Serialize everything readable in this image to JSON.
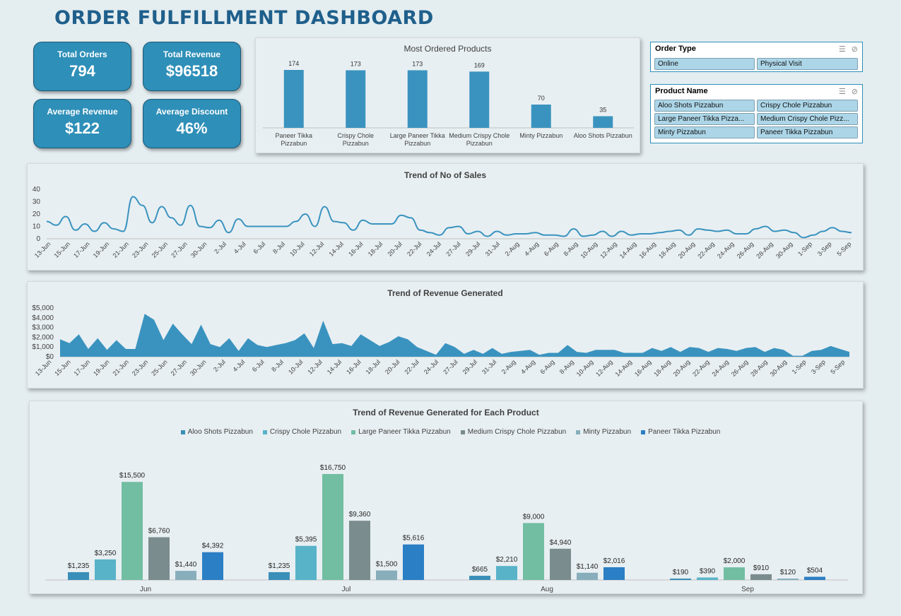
{
  "title": "ORDER FULFILLMENT DASHBOARD",
  "kpis": [
    {
      "label": "Total Orders",
      "value": "794"
    },
    {
      "label": "Total Revenue",
      "value": "$96518"
    },
    {
      "label": "Average Revenue",
      "value": "$122"
    },
    {
      "label": "Average Discount",
      "value": "46%"
    }
  ],
  "slicers": {
    "order_type": {
      "title": "Order Type",
      "items": [
        "Online",
        "Physical Visit"
      ]
    },
    "product_name": {
      "title": "Product Name",
      "items": [
        "Aloo Shots Pizzabun",
        "Crispy Chole Pizzabun",
        "Large Paneer Tikka Pizza...",
        "Medium Crispy Chole Pizz...",
        "Minty Pizzabun",
        "Paneer Tikka Pizzabun"
      ]
    }
  },
  "colors": {
    "accent": "#3a93bf",
    "kpi": "#2e8fb8",
    "title": "#1f5f8b"
  },
  "chart_data": [
    {
      "type": "bar",
      "title": "Most Ordered Products",
      "categories": [
        "Paneer Tikka Pizzabun",
        "Crispy Chole Pizzabun",
        "Large Paneer Tikka Pizzabun",
        "Medium Crispy Chole Pizzabun",
        "Minty Pizzabun",
        "Aloo Shots Pizzabun"
      ],
      "values": [
        174,
        173,
        173,
        169,
        70,
        35
      ],
      "ylim": [
        0,
        174
      ]
    },
    {
      "type": "line",
      "title": "Trend of No of Sales",
      "x_labels": [
        "13-Jun",
        "15-Jun",
        "17-Jun",
        "19-Jun",
        "21-Jun",
        "23-Jun",
        "25-Jun",
        "27-Jun",
        "30-Jun",
        "2-Jul",
        "4-Jul",
        "6-Jul",
        "8-Jul",
        "10-Jul",
        "12-Jul",
        "14-Jul",
        "16-Jul",
        "18-Jul",
        "20-Jul",
        "22-Jul",
        "24-Jul",
        "27-Jul",
        "29-Jul",
        "31-Jul",
        "2-Aug",
        "4-Aug",
        "6-Aug",
        "8-Aug",
        "10-Aug",
        "12-Aug",
        "14-Aug",
        "16-Aug",
        "18-Aug",
        "20-Aug",
        "22-Aug",
        "24-Aug",
        "26-Aug",
        "28-Aug",
        "30-Aug",
        "1-Sep",
        "3-Sep",
        "5-Sep"
      ],
      "y_ticks": [
        "0",
        "10",
        "20",
        "30",
        "40"
      ],
      "ylim": [
        0,
        40
      ],
      "values": [
        14,
        11,
        18,
        7,
        12,
        6,
        13,
        8,
        6,
        34,
        27,
        13,
        26,
        17,
        11,
        27,
        10,
        9,
        15,
        5,
        16,
        10,
        10,
        10,
        10,
        10,
        14,
        20,
        10,
        26,
        14,
        13,
        7,
        15,
        12,
        12,
        12,
        19,
        17,
        7,
        5,
        3,
        9,
        10,
        4,
        6,
        2,
        6,
        3,
        4,
        4,
        5,
        3,
        3,
        2,
        8,
        2,
        3,
        6,
        2,
        6,
        3,
        4,
        4,
        5,
        6,
        7,
        3,
        8,
        7,
        6,
        7,
        4,
        4,
        8,
        10,
        6,
        7,
        5,
        1,
        3,
        6,
        9,
        6,
        5
      ],
      "ylabel": "",
      "xlabel": ""
    },
    {
      "type": "area",
      "title": "Trend of Revenue Generated",
      "x_labels": [
        "13-Jun",
        "15-Jun",
        "17-Jun",
        "19-Jun",
        "21-Jun",
        "23-Jun",
        "25-Jun",
        "27-Jun",
        "30-Jun",
        "2-Jul",
        "4-Jul",
        "6-Jul",
        "8-Jul",
        "10-Jul",
        "12-Jul",
        "14-Jul",
        "16-Jul",
        "18-Jul",
        "20-Jul",
        "22-Jul",
        "24-Jul",
        "27-Jul",
        "29-Jul",
        "31-Jul",
        "2-Aug",
        "4-Aug",
        "6-Aug",
        "8-Aug",
        "10-Aug",
        "12-Aug",
        "14-Aug",
        "16-Aug",
        "18-Aug",
        "20-Aug",
        "22-Aug",
        "24-Aug",
        "26-Aug",
        "28-Aug",
        "30-Aug",
        "1-Sep",
        "3-Sep",
        "5-Sep"
      ],
      "y_ticks": [
        "$0",
        "$1,000",
        "$2,000",
        "$3,000",
        "$4,000",
        "$5,000"
      ],
      "ylim": [
        0,
        5000
      ],
      "values": [
        1800,
        1400,
        2300,
        800,
        1900,
        700,
        1700,
        800,
        800,
        4400,
        3800,
        1700,
        3400,
        2300,
        1300,
        3300,
        1300,
        1000,
        1900,
        600,
        1900,
        1200,
        1000,
        1200,
        1400,
        1700,
        2400,
        900,
        3700,
        1300,
        1400,
        1100,
        2300,
        1700,
        1100,
        1500,
        2100,
        1800,
        1000,
        600,
        200,
        1400,
        1000,
        300,
        700,
        300,
        900,
        300,
        500,
        600,
        700,
        200,
        400,
        400,
        1200,
        500,
        400,
        700,
        700,
        700,
        400,
        400,
        400,
        900,
        600,
        1000,
        500,
        1000,
        900,
        500,
        900,
        800,
        600,
        900,
        1000,
        500,
        900,
        700,
        100,
        100,
        600,
        700,
        1100,
        800,
        500
      ],
      "ylabel": "",
      "xlabel": ""
    },
    {
      "type": "bar",
      "title": "Trend of Revenue Generated for Each Product",
      "categories": [
        "Jun",
        "Jul",
        "Aug",
        "Sep"
      ],
      "series": [
        {
          "name": "Aloo Shots Pizzabun",
          "color": "#3a8fb8",
          "values": [
            1235,
            1235,
            665,
            190
          ],
          "labels": [
            "$1,235",
            "$1,235",
            "$665",
            "$190"
          ]
        },
        {
          "name": "Crispy Chole Pizzabun",
          "color": "#58b3c8",
          "values": [
            3250,
            5395,
            2210,
            390
          ],
          "labels": [
            "$3,250",
            "$5,395",
            "$2,210",
            "$390"
          ]
        },
        {
          "name": "Large Paneer Tikka Pizzabun",
          "color": "#72bea3",
          "values": [
            15500,
            16750,
            9000,
            2000
          ],
          "labels": [
            "$15,500",
            "$16,750",
            "$9,000",
            "$2,000"
          ]
        },
        {
          "name": "Medium Crispy Chole Pizzabun",
          "color": "#7a8c8e",
          "values": [
            6760,
            9360,
            4940,
            910
          ],
          "labels": [
            "$6,760",
            "$9,360",
            "$4,940",
            "$910"
          ]
        },
        {
          "name": "Minty Pizzabun",
          "color": "#88aebb",
          "values": [
            1440,
            1500,
            1140,
            120
          ],
          "labels": [
            "$1,440",
            "$1,500",
            "$1,140",
            "$120"
          ]
        },
        {
          "name": "Paneer Tikka Pizzabun",
          "color": "#2b7fc4",
          "values": [
            4392,
            5616,
            2016,
            504
          ],
          "labels": [
            "$4,392",
            "$5,616",
            "$2,016",
            "$504"
          ]
        }
      ],
      "ylim": [
        0,
        16750
      ],
      "legend": "top"
    }
  ]
}
